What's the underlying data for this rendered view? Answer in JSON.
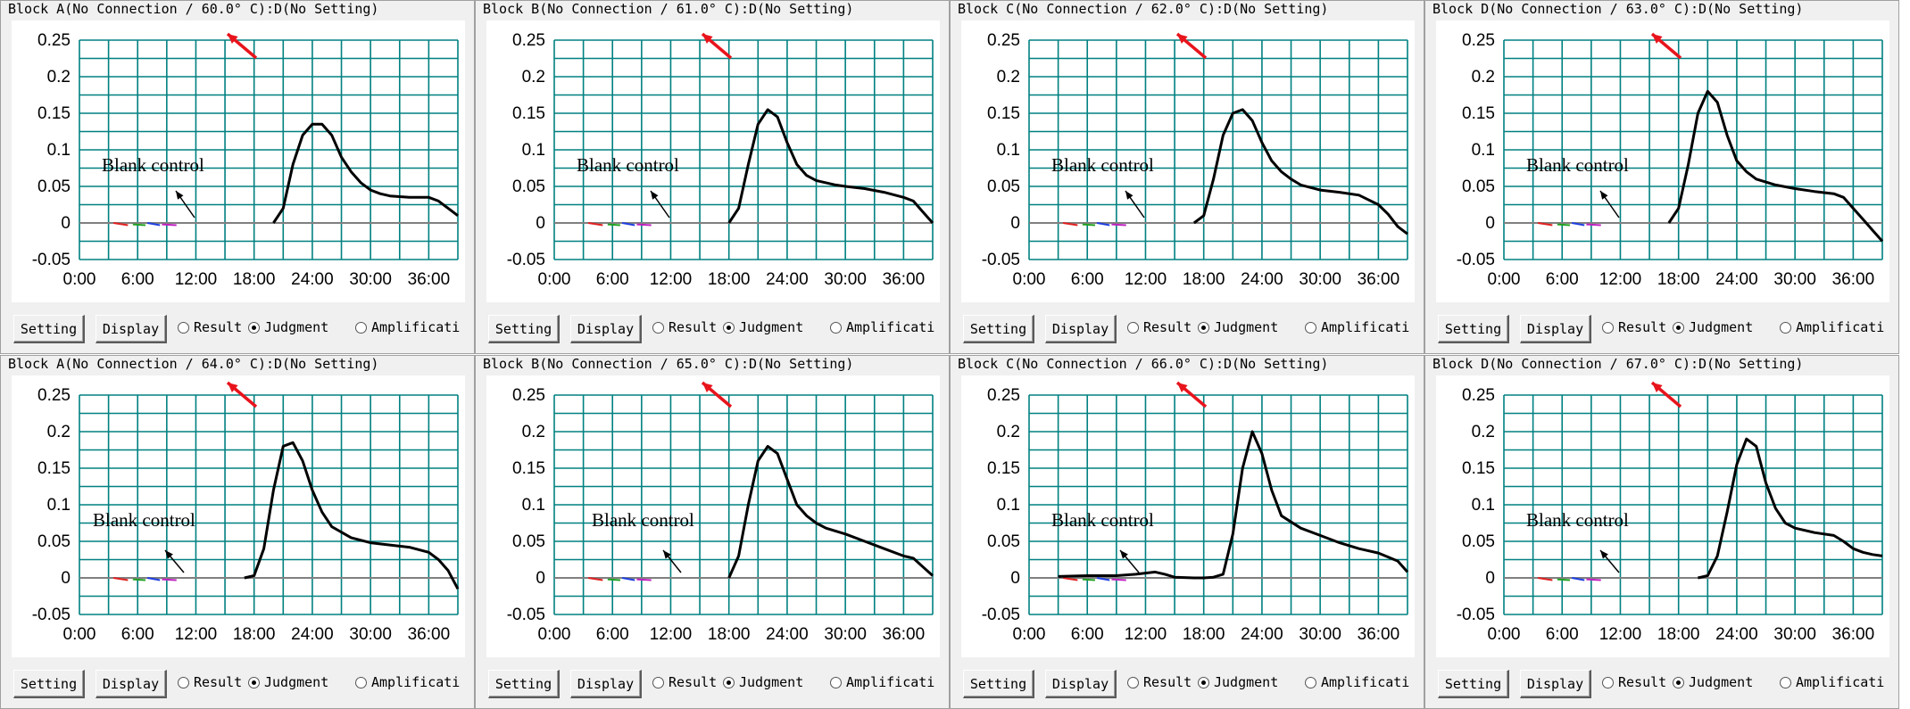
{
  "common": {
    "setting_label": "Setting",
    "display_label": "Display",
    "radio_result": "Result",
    "radio_judgment": "Judgment",
    "radio_amplification": "Amplificati",
    "selected_radio": "Judgment",
    "annotation": "Blank control",
    "y_ticks": [
      "0.25",
      "0.2",
      "0.15",
      "0.1",
      "0.05",
      "0",
      "-0.05"
    ],
    "x_ticks": [
      "0:00",
      "6:00",
      "12:00",
      "18:00",
      "24:00",
      "30:00",
      "36:00"
    ],
    "colors": {
      "grid": "#008080",
      "curve": "#000000",
      "baseline": "#808080",
      "arrow_red": "#e8141c"
    }
  },
  "panels": [
    {
      "title": "Block A(No Connection / 60.0° C):D(No Setting)"
    },
    {
      "title": "Block B(No Connection / 61.0° C):D(No Setting)"
    },
    {
      "title": "Block C(No Connection / 62.0° C):D(No Setting)"
    },
    {
      "title": "Block D(No Connection / 63.0° C):D(No Setting)"
    },
    {
      "title": "Block A(No Connection / 64.0° C):D(No Setting)"
    },
    {
      "title": "Block B(No Connection / 65.0° C):D(No Setting)"
    },
    {
      "title": "Block C(No Connection / 66.0° C):D(No Setting)"
    },
    {
      "title": "Block D(No Connection / 67.0° C):D(No Setting)"
    }
  ],
  "chart_data": [
    {
      "type": "line",
      "title": "Block A(No Connection / 60.0° C):D(No Setting)",
      "xlim": [
        "0:00",
        "39:00"
      ],
      "ylim": [
        -0.05,
        0.25
      ],
      "series": [
        {
          "x": [
            20,
            21,
            22,
            23,
            24,
            25,
            26,
            27,
            28,
            29,
            30,
            31,
            32,
            34,
            36,
            37,
            38,
            39
          ],
          "y": [
            0,
            0.02,
            0.08,
            0.12,
            0.135,
            0.135,
            0.12,
            0.09,
            0.07,
            0.055,
            0.045,
            0.04,
            0.037,
            0.035,
            0.035,
            0.03,
            0.02,
            0.01
          ]
        }
      ]
    },
    {
      "type": "line",
      "title": "Block B(No Connection / 61.0° C):D(No Setting)",
      "xlim": [
        "0:00",
        "39:00"
      ],
      "ylim": [
        -0.05,
        0.25
      ],
      "series": [
        {
          "x": [
            18,
            19,
            20,
            21,
            22,
            23,
            24,
            25,
            26,
            27,
            28,
            29,
            30,
            32,
            34,
            36,
            37,
            38,
            39
          ],
          "y": [
            0,
            0.02,
            0.08,
            0.135,
            0.155,
            0.145,
            0.11,
            0.08,
            0.065,
            0.058,
            0.055,
            0.052,
            0.05,
            0.047,
            0.042,
            0.035,
            0.03,
            0.015,
            0
          ]
        }
      ]
    },
    {
      "type": "line",
      "title": "Block C(No Connection / 62.0° C):D(No Setting)",
      "xlim": [
        "0:00",
        "39:00"
      ],
      "ylim": [
        -0.05,
        0.25
      ],
      "series": [
        {
          "x": [
            17,
            18,
            19,
            20,
            21,
            22,
            23,
            24,
            25,
            26,
            27,
            28,
            30,
            32,
            34,
            36,
            37,
            38,
            39
          ],
          "y": [
            0,
            0.01,
            0.06,
            0.12,
            0.15,
            0.155,
            0.14,
            0.11,
            0.085,
            0.07,
            0.06,
            0.052,
            0.045,
            0.042,
            0.038,
            0.025,
            0.012,
            -0.005,
            -0.015
          ]
        }
      ]
    },
    {
      "type": "line",
      "title": "Block D(No Connection / 63.0° C):D(No Setting)",
      "xlim": [
        "0:00",
        "39:00"
      ],
      "ylim": [
        -0.05,
        0.25
      ],
      "series": [
        {
          "x": [
            17,
            18,
            19,
            20,
            21,
            22,
            23,
            24,
            25,
            26,
            28,
            30,
            32,
            34,
            35,
            36,
            37,
            38,
            39
          ],
          "y": [
            0,
            0.02,
            0.08,
            0.15,
            0.18,
            0.165,
            0.12,
            0.085,
            0.07,
            0.06,
            0.052,
            0.047,
            0.043,
            0.04,
            0.035,
            0.02,
            0.005,
            -0.01,
            -0.025
          ]
        }
      ]
    },
    {
      "type": "line",
      "title": "Block A(No Connection / 64.0° C):D(No Setting)",
      "xlim": [
        "0:00",
        "39:00"
      ],
      "ylim": [
        -0.05,
        0.25
      ],
      "series": [
        {
          "x": [
            17,
            18,
            19,
            20,
            21,
            22,
            23,
            24,
            25,
            26,
            28,
            30,
            32,
            34,
            36,
            37,
            38,
            39
          ],
          "y": [
            0,
            0.003,
            0.04,
            0.12,
            0.18,
            0.185,
            0.16,
            0.12,
            0.09,
            0.07,
            0.055,
            0.048,
            0.045,
            0.042,
            0.035,
            0.025,
            0.01,
            -0.015
          ]
        }
      ]
    },
    {
      "type": "line",
      "title": "Block B(No Connection / 65.0° C):D(No Setting)",
      "xlim": [
        "0:00",
        "39:00"
      ],
      "ylim": [
        -0.05,
        0.25
      ],
      "series": [
        {
          "x": [
            18,
            19,
            20,
            21,
            22,
            23,
            24,
            25,
            26,
            27,
            28,
            30,
            32,
            34,
            36,
            37,
            38,
            39
          ],
          "y": [
            0,
            0.03,
            0.1,
            0.16,
            0.18,
            0.17,
            0.135,
            0.1,
            0.085,
            0.075,
            0.068,
            0.06,
            0.05,
            0.04,
            0.03,
            0.027,
            0.015,
            0.003
          ]
        }
      ]
    },
    {
      "type": "line",
      "title": "Block C(No Connection / 66.0° C):D(No Setting)",
      "xlim": [
        "0:00",
        "39:00"
      ],
      "ylim": [
        -0.05,
        0.25
      ],
      "series": [
        {
          "x": [
            3,
            6,
            9,
            11,
            13,
            14,
            15,
            17,
            18,
            19,
            20,
            21,
            22,
            23,
            24,
            25,
            26,
            28,
            30,
            32,
            34,
            36,
            38,
            39
          ],
          "y": [
            0.002,
            0.003,
            0.003,
            0.005,
            0.008,
            0.005,
            0.001,
            0,
            0,
            0.001,
            0.005,
            0.06,
            0.15,
            0.2,
            0.17,
            0.12,
            0.085,
            0.068,
            0.058,
            0.048,
            0.04,
            0.034,
            0.023,
            0.008
          ]
        }
      ]
    },
    {
      "type": "line",
      "title": "Block D(No Connection / 67.0° C):D(No Setting)",
      "xlim": [
        "0:00",
        "39:00"
      ],
      "ylim": [
        -0.05,
        0.25
      ],
      "series": [
        {
          "x": [
            20,
            21,
            22,
            23,
            24,
            25,
            26,
            27,
            28,
            29,
            30,
            32,
            34,
            35,
            36,
            37,
            38,
            39
          ],
          "y": [
            0,
            0.003,
            0.03,
            0.09,
            0.155,
            0.19,
            0.18,
            0.13,
            0.095,
            0.075,
            0.068,
            0.062,
            0.058,
            0.05,
            0.04,
            0.035,
            0.032,
            0.03
          ]
        }
      ]
    }
  ]
}
